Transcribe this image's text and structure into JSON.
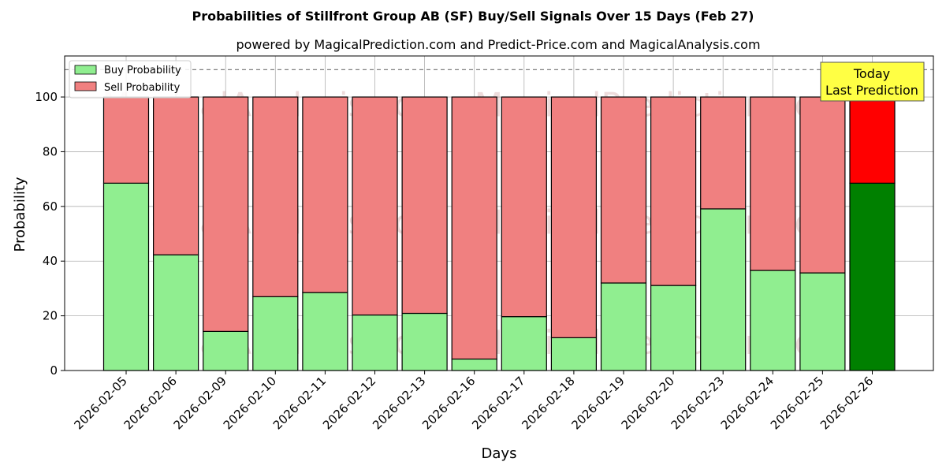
{
  "chart_data": {
    "type": "bar",
    "stacked": true,
    "title": "Probabilities of Stillfront Group AB (SF) Buy/Sell Signals Over 15 Days (Feb 27)",
    "subtitle": "powered by MagicalPrediction.com and Predict-Price.com and MagicalAnalysis.com",
    "xlabel": "Days",
    "ylabel": "Probability",
    "ylim": [
      0,
      115
    ],
    "yticks": [
      0,
      20,
      40,
      60,
      80,
      100
    ],
    "reference_line": 110,
    "grid": true,
    "legend_position": "top-left",
    "categories": [
      "2026-02-05",
      "2026-02-06",
      "2026-02-09",
      "2026-02-10",
      "2026-02-11",
      "2026-02-12",
      "2026-02-13",
      "2026-02-16",
      "2026-02-17",
      "2026-02-18",
      "2026-02-19",
      "2026-02-20",
      "2026-02-23",
      "2026-02-24",
      "2026-02-25",
      "2026-02-26"
    ],
    "series": [
      {
        "name": "Buy Probability",
        "color": "#90ee90",
        "highlight_color": "#008000",
        "values": [
          68.5,
          42.3,
          14.3,
          27.0,
          28.5,
          20.3,
          20.9,
          4.2,
          19.7,
          12.0,
          32.0,
          31.1,
          59.1,
          36.6,
          35.7,
          68.5
        ]
      },
      {
        "name": "Sell Probability",
        "color": "#f08080",
        "highlight_color": "#ff0000",
        "values": [
          31.5,
          57.7,
          85.7,
          73.0,
          71.5,
          79.7,
          79.1,
          95.8,
          80.3,
          88.0,
          68.0,
          68.9,
          40.9,
          63.4,
          64.3,
          31.5
        ]
      }
    ],
    "annotation": {
      "lines": [
        "Today",
        "Last Prediction"
      ],
      "box_color": "#ffff44"
    },
    "watermarks": [
      "MagicalAnalysis.com",
      "MagicalPrediction.com"
    ]
  }
}
